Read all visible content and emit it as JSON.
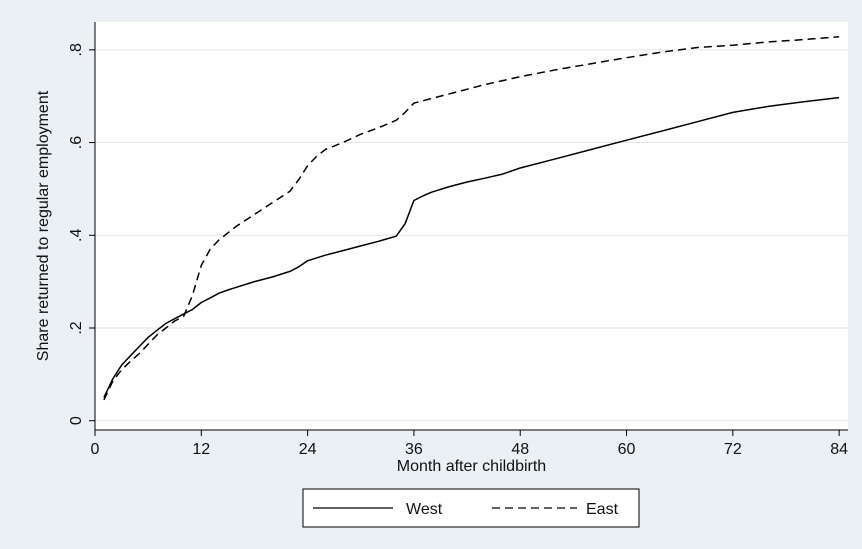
{
  "chart_data": {
    "type": "line",
    "title": "",
    "xlabel": "Month after childbirth",
    "ylabel": "Share returned to regular employment",
    "xlim": [
      0,
      85
    ],
    "ylim": [
      -0.02,
      0.86
    ],
    "xticks": [
      0,
      12,
      24,
      36,
      48,
      60,
      72,
      84
    ],
    "yticks": [
      0,
      0.2,
      0.4,
      0.6,
      0.8
    ],
    "ytick_labels": [
      "0",
      ".2",
      ".4",
      ".6",
      ".8"
    ],
    "grid": "horizontal",
    "legend_position": "bottom",
    "series": [
      {
        "name": "West",
        "style": "solid",
        "color": "#000000",
        "x": [
          1,
          2,
          3,
          4,
          5,
          6,
          7,
          8,
          9,
          10,
          11,
          12,
          13,
          14,
          15,
          16,
          18,
          20,
          22,
          23,
          24,
          26,
          28,
          30,
          32,
          34,
          35,
          35.5,
          36,
          37,
          38,
          40,
          42,
          44,
          46,
          48,
          52,
          56,
          60,
          64,
          68,
          72,
          76,
          80,
          84
        ],
        "y": [
          0.05,
          0.09,
          0.12,
          0.14,
          0.16,
          0.18,
          0.195,
          0.21,
          0.22,
          0.23,
          0.24,
          0.255,
          0.265,
          0.275,
          0.282,
          0.288,
          0.3,
          0.31,
          0.322,
          0.332,
          0.345,
          0.357,
          0.367,
          0.377,
          0.387,
          0.398,
          0.425,
          0.45,
          0.475,
          0.485,
          0.493,
          0.505,
          0.515,
          0.523,
          0.532,
          0.545,
          0.565,
          0.585,
          0.605,
          0.625,
          0.645,
          0.665,
          0.678,
          0.688,
          0.697
        ]
      },
      {
        "name": "East",
        "style": "dashed",
        "color": "#000000",
        "x": [
          1,
          2,
          3,
          4,
          5,
          6,
          7,
          8,
          9,
          10,
          11,
          12,
          13,
          14,
          16,
          18,
          20,
          22,
          23,
          24,
          25,
          26,
          28,
          30,
          32,
          34,
          35,
          36,
          38,
          40,
          44,
          48,
          52,
          56,
          60,
          64,
          68,
          72,
          76,
          80,
          84
        ],
        "y": [
          0.045,
          0.085,
          0.11,
          0.128,
          0.145,
          0.165,
          0.185,
          0.2,
          0.215,
          0.225,
          0.27,
          0.335,
          0.37,
          0.39,
          0.42,
          0.445,
          0.47,
          0.495,
          0.52,
          0.55,
          0.57,
          0.585,
          0.6,
          0.618,
          0.632,
          0.648,
          0.665,
          0.685,
          0.695,
          0.705,
          0.725,
          0.742,
          0.757,
          0.77,
          0.783,
          0.795,
          0.805,
          0.81,
          0.817,
          0.822,
          0.828
        ]
      }
    ]
  }
}
